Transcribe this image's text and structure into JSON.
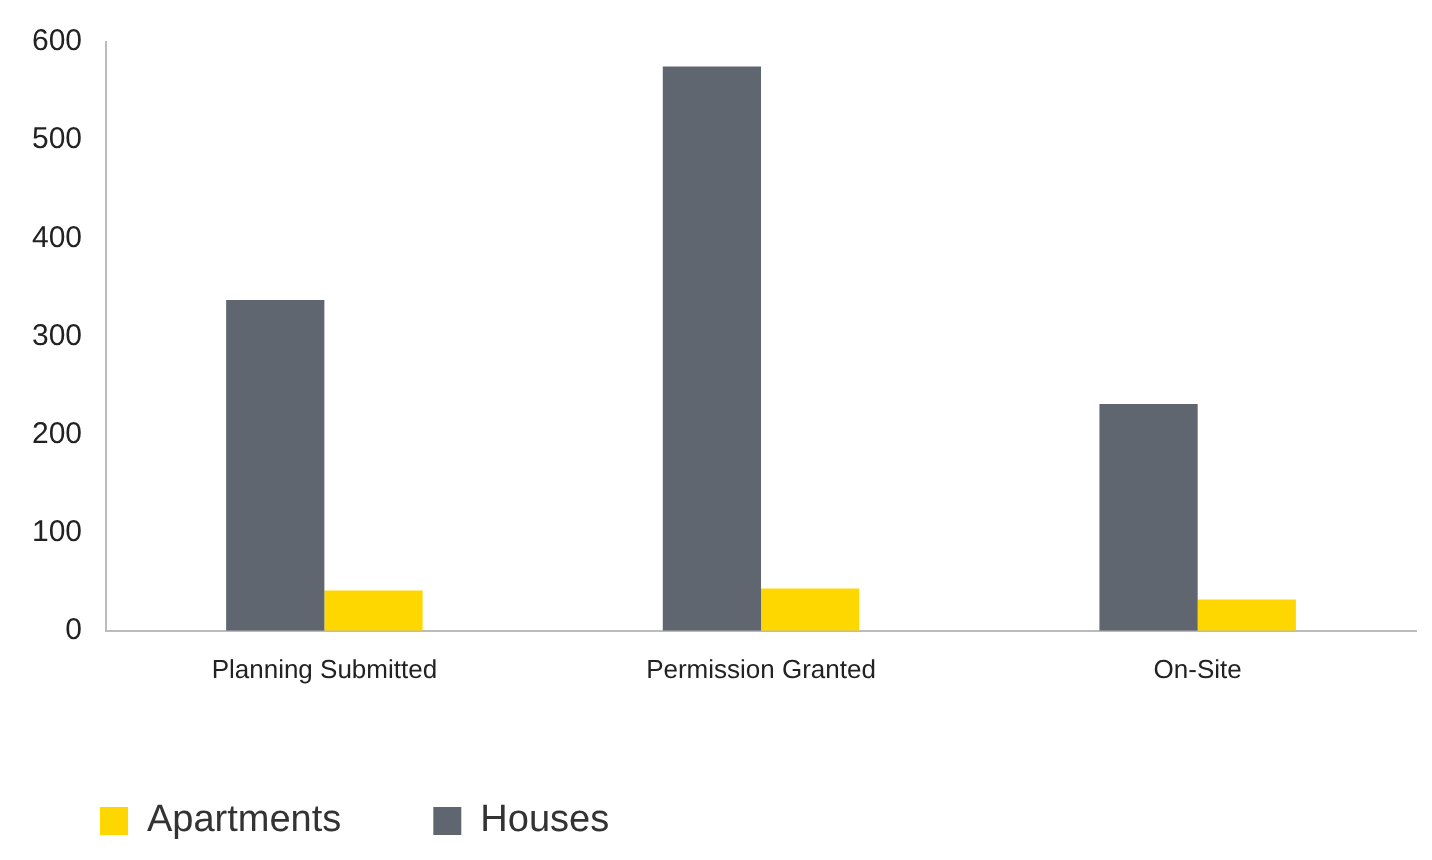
{
  "chart_data": {
    "type": "bar",
    "categories": [
      "Planning Submitted",
      "Permission Granted",
      "On-Site"
    ],
    "series": [
      {
        "name": "Houses",
        "color": "#5f6670",
        "values": [
          337,
          575,
          231
        ]
      },
      {
        "name": "Apartments",
        "color": "#ffd700",
        "values": [
          41,
          43,
          32
        ]
      }
    ],
    "ylim": [
      0,
      600
    ],
    "yticks": [
      0,
      100,
      200,
      300,
      400,
      500,
      600
    ],
    "grid": false,
    "legend": "bottom left"
  }
}
